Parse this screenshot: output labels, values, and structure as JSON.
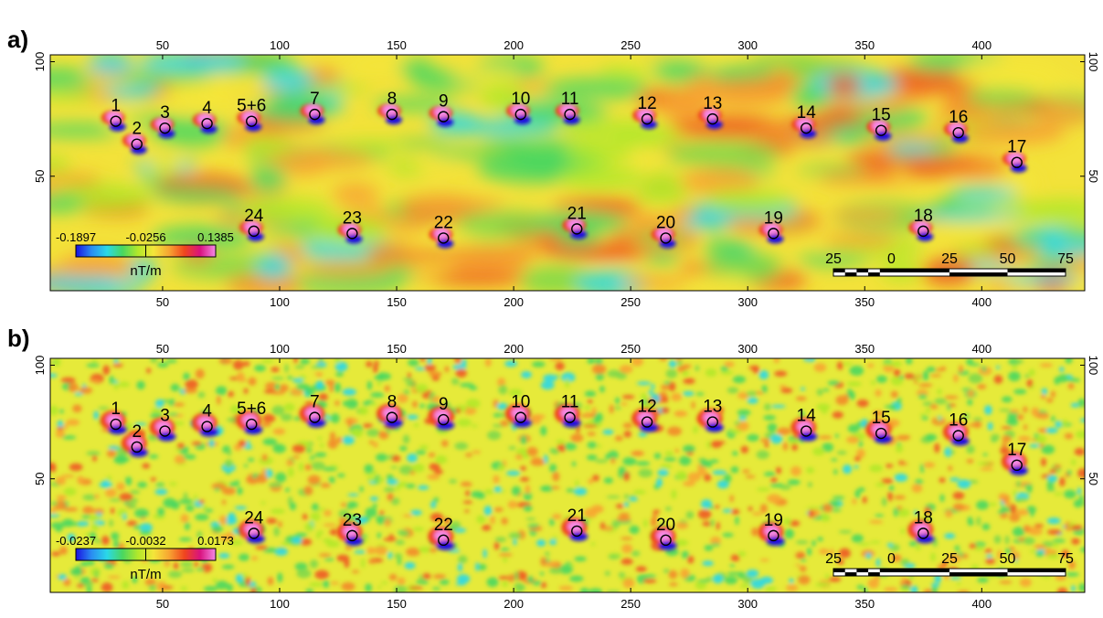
{
  "panels": [
    {
      "label": "a)",
      "colorbar": {
        "ticks": [
          "-0.1897",
          "-0.0256",
          "0.1385"
        ],
        "unit": "nT/m"
      },
      "scalebar_labels": [
        "25",
        "0",
        "25",
        "50",
        "75"
      ]
    },
    {
      "label": "b)",
      "colorbar": {
        "ticks": [
          "-0.0237",
          "-0.0032",
          "0.0173"
        ],
        "unit": "nT/m"
      },
      "scalebar_labels": [
        "25",
        "0",
        "25",
        "50",
        "75"
      ]
    }
  ],
  "chart_data": {
    "type": "heatmap",
    "x_ticks": [
      50,
      100,
      150,
      200,
      250,
      300,
      350,
      400
    ],
    "y_ticks": [
      50,
      100
    ],
    "xlim": [
      2,
      444
    ],
    "ylim": [
      0,
      103
    ],
    "markers": [
      {
        "label": "1",
        "x": 30,
        "y": 74
      },
      {
        "label": "2",
        "x": 39,
        "y": 64
      },
      {
        "label": "3",
        "x": 51,
        "y": 71
      },
      {
        "label": "4",
        "x": 69,
        "y": 73
      },
      {
        "label": "5+6",
        "x": 88,
        "y": 74
      },
      {
        "label": "7",
        "x": 115,
        "y": 77
      },
      {
        "label": "8",
        "x": 148,
        "y": 77
      },
      {
        "label": "9",
        "x": 170,
        "y": 76
      },
      {
        "label": "10",
        "x": 203,
        "y": 77
      },
      {
        "label": "11",
        "x": 224,
        "y": 77
      },
      {
        "label": "12",
        "x": 257,
        "y": 75
      },
      {
        "label": "13",
        "x": 285,
        "y": 75
      },
      {
        "label": "14",
        "x": 325,
        "y": 71
      },
      {
        "label": "15",
        "x": 357,
        "y": 70
      },
      {
        "label": "16",
        "x": 390,
        "y": 69
      },
      {
        "label": "17",
        "x": 415,
        "y": 56
      },
      {
        "label": "18",
        "x": 375,
        "y": 26
      },
      {
        "label": "19",
        "x": 311,
        "y": 25
      },
      {
        "label": "20",
        "x": 265,
        "y": 23
      },
      {
        "label": "21",
        "x": 227,
        "y": 27
      },
      {
        "label": "22",
        "x": 170,
        "y": 23
      },
      {
        "label": "23",
        "x": 131,
        "y": 25
      },
      {
        "label": "24",
        "x": 89,
        "y": 26
      }
    ],
    "colormap": [
      "#1a10e0",
      "#2a8cf2",
      "#2ad8e8",
      "#49d760",
      "#b3e82a",
      "#f4e63a",
      "#f7a532",
      "#f0451e",
      "#d9127f",
      "#f58ae6"
    ]
  }
}
